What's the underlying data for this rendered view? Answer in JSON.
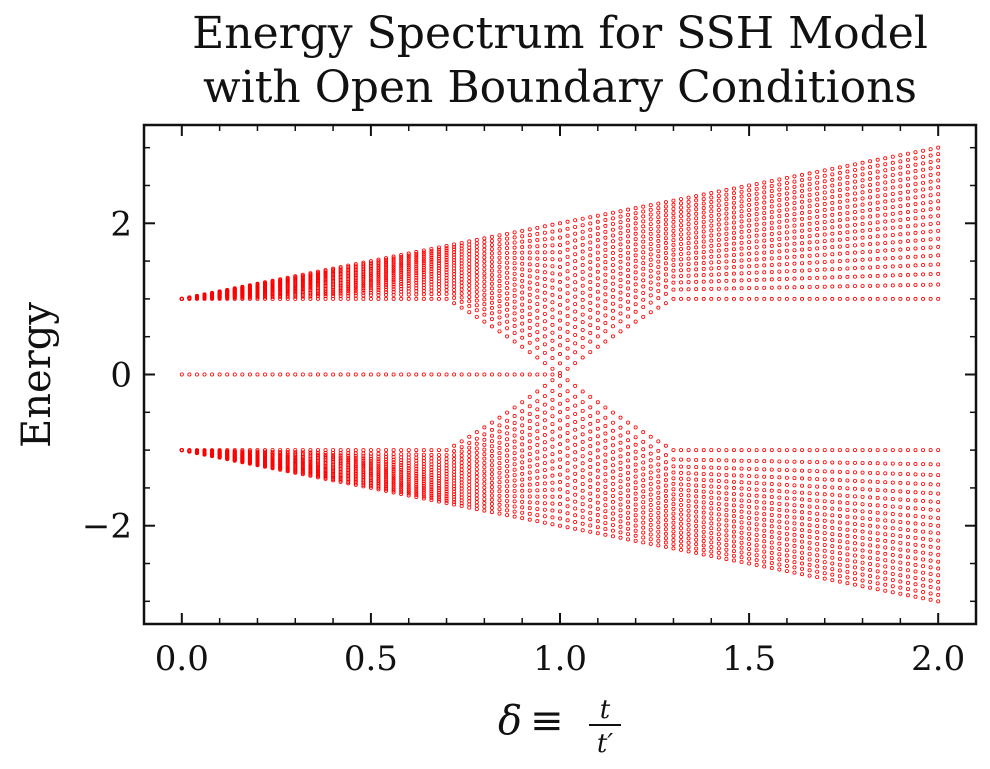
{
  "chart_data": {
    "type": "scatter",
    "title_line1": "Energy Spectrum for SSH Model",
    "title_line2": "with Open Boundary Conditions",
    "xlabel_symbol": "δ",
    "xlabel_equiv": "≡",
    "xlabel_numerator": "t",
    "xlabel_denominator": "t′",
    "ylabel": "Energy",
    "xlim": [
      -0.1,
      2.1
    ],
    "ylim": [
      -3.3,
      3.3
    ],
    "xticks": [
      0.0,
      0.5,
      1.0,
      1.5,
      2.0
    ],
    "xtick_labels": [
      "0.0",
      "0.5",
      "1.0",
      "1.5",
      "2.0"
    ],
    "yticks": [
      -2,
      0,
      2
    ],
    "ytick_labels": [
      "−2",
      "0",
      "2"
    ],
    "marker_color": "#ff0000",
    "marker_style": "hollow-circle",
    "grid": false,
    "delta_start": 0.0,
    "delta_end": 2.0,
    "delta_count": 101,
    "bulk_levels_per_band": 20,
    "upper_band_lower_edge": 1.0,
    "upper_band_upper_edge_formula": "1 + delta",
    "lower_band_upper_edge": -1.0,
    "lower_band_lower_edge_formula": "-(1 + delta)",
    "edge_states": "zero energy for delta < 1, merging into bulk near delta = 1"
  }
}
